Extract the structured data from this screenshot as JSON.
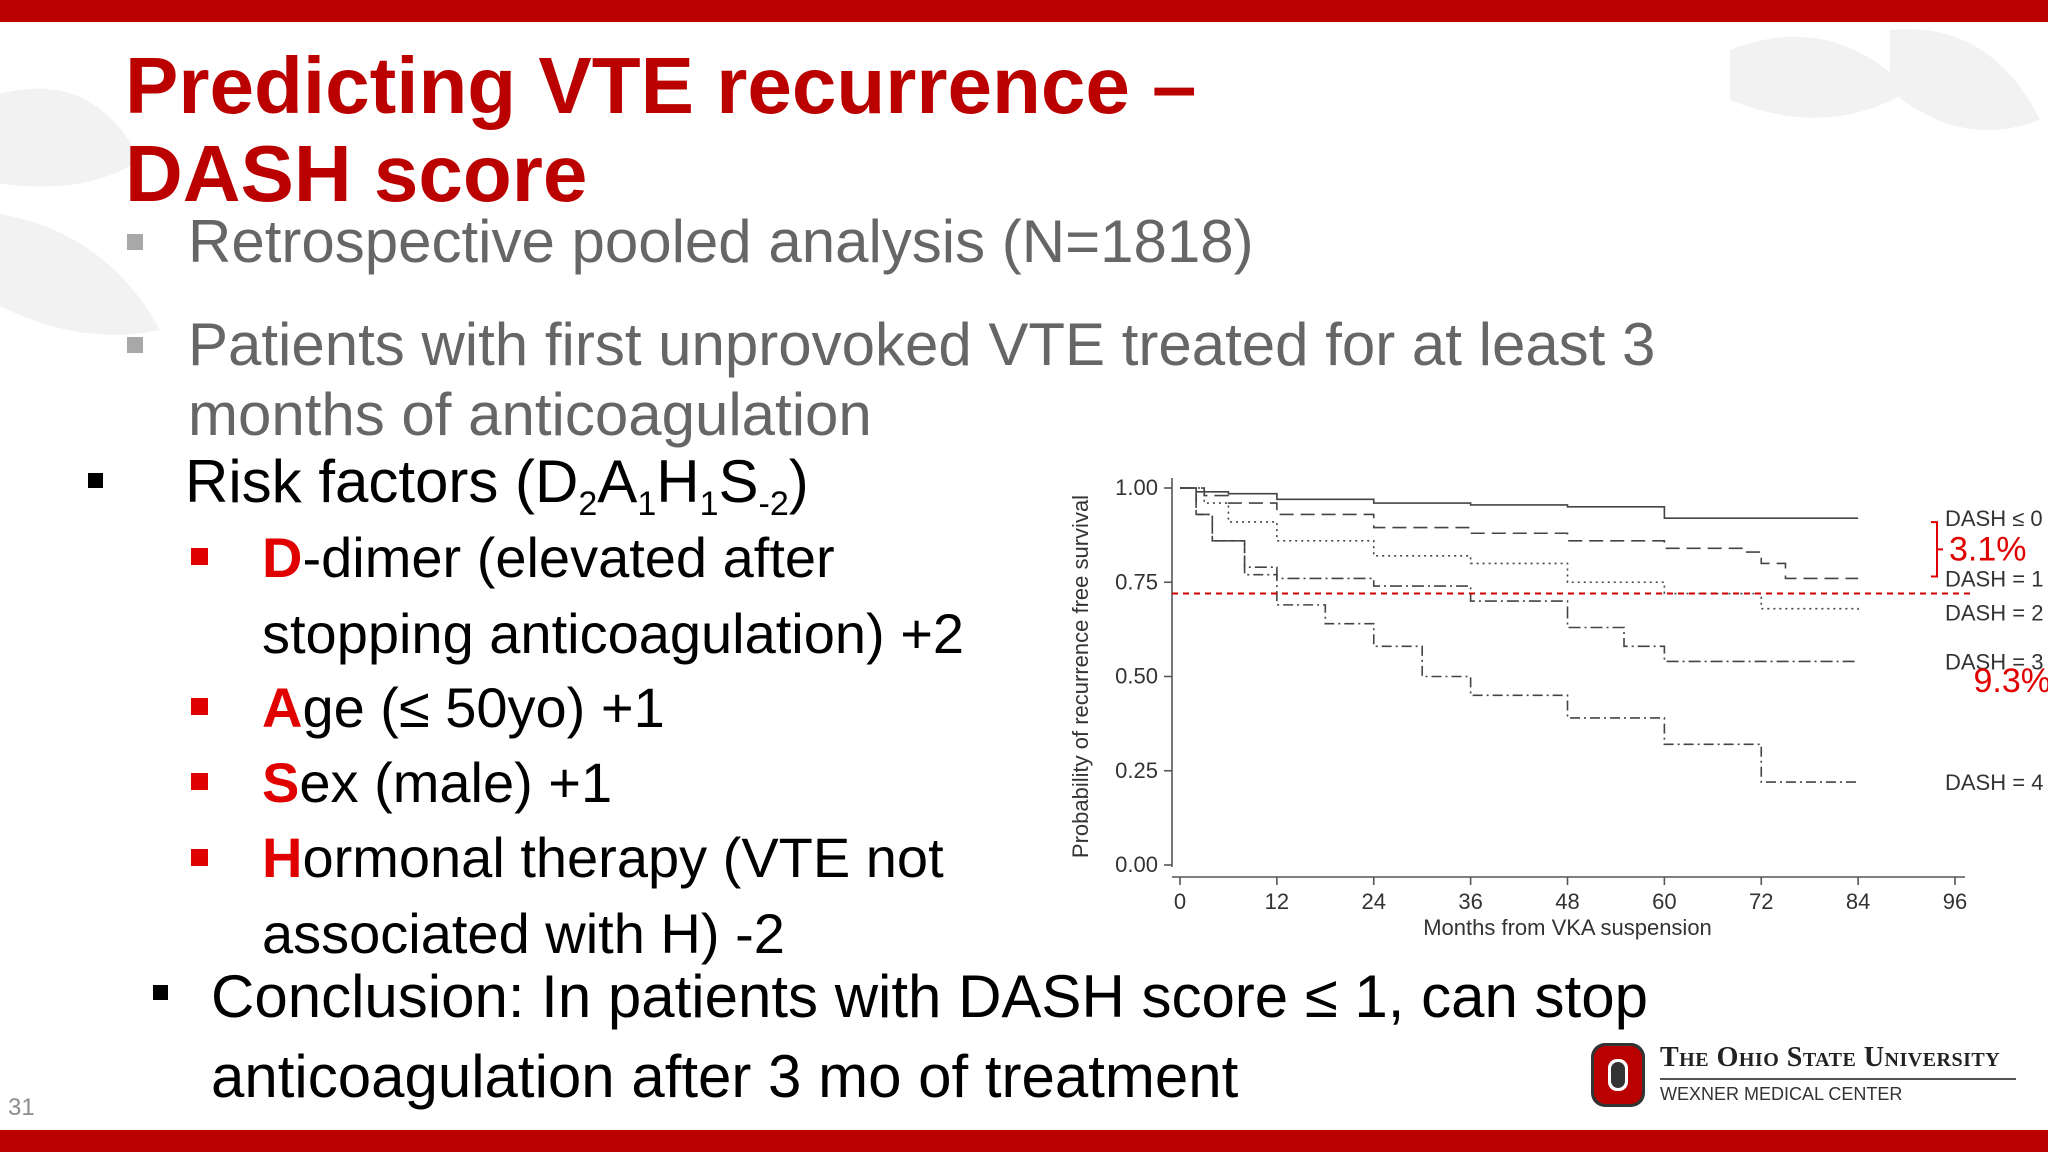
{
  "slide": {
    "title_line1": "Predicting VTE recurrence –",
    "title_line2": "DASH score",
    "bullet1": "Retrospective pooled analysis (N=1818)",
    "bullet2_line1": "Patients with first unprovoked VTE treated for at least 3",
    "bullet2_line2": "months of anticoagulation",
    "risk_prefix": "Risk factors (D",
    "risk_sub1": "2",
    "risk_a": "A",
    "risk_sub2": "1",
    "risk_h": "H",
    "risk_sub3": "1",
    "risk_s": "S",
    "risk_sub4": "-2",
    "risk_suffix": ")",
    "factors": [
      {
        "letter": "D",
        "rest_line1": "-dimer (elevated after",
        "rest_line2": "stopping anticoagulation) +2"
      },
      {
        "letter": "A",
        "rest_line1": "ge (≤ 50yo) +1"
      },
      {
        "letter": "S",
        "rest_line1": "ex (male) +1"
      },
      {
        "letter": "H",
        "rest_line1": "ormonal therapy (VTE not",
        "rest_line2": "associated with H) -2"
      }
    ],
    "conclusion_line1": "Conclusion: In patients with DASH score ≤ 1, can stop",
    "conclusion_line2": "anticoagulation after 3 mo of treatment",
    "slide_number": "31",
    "footer_org": "The Ohio State University",
    "footer_sub": "WEXNER MEDICAL CENTER",
    "colors": {
      "brand_red": "#bb0000",
      "bullet_red": "#e00000",
      "gray_text": "#666666"
    }
  },
  "chart_data": {
    "type": "line",
    "xlabel": "Months from VKA suspension",
    "ylabel": "Probability of recurrence free survival",
    "xlim": [
      0,
      96
    ],
    "ylim": [
      0,
      1
    ],
    "xticks": [
      "0",
      "12",
      "24",
      "36",
      "48",
      "60",
      "72",
      "84",
      "96"
    ],
    "yticks": [
      "0.00",
      "0.25",
      "0.50",
      "0.75",
      "1.00"
    ],
    "series": [
      {
        "name": "DASH ≤ 0",
        "dash": "",
        "x": [
          0,
          2,
          6,
          12,
          24,
          36,
          44,
          48,
          60,
          72,
          84
        ],
        "y": [
          1,
          0.99,
          0.985,
          0.97,
          0.96,
          0.955,
          0.955,
          0.95,
          0.92,
          0.92,
          0.92
        ]
      },
      {
        "name": "DASH = 1",
        "dash": "14,7",
        "x": [
          0,
          3,
          6,
          12,
          24,
          36,
          48,
          60,
          70,
          72,
          75,
          84
        ],
        "y": [
          1,
          0.98,
          0.96,
          0.93,
          0.895,
          0.88,
          0.86,
          0.84,
          0.83,
          0.8,
          0.76,
          0.76
        ]
      },
      {
        "name": "DASH = 2",
        "dash": "2,4",
        "x": [
          0,
          3,
          6,
          12,
          24,
          36,
          48,
          60,
          72,
          84
        ],
        "y": [
          1,
          0.96,
          0.91,
          0.86,
          0.82,
          0.8,
          0.75,
          0.72,
          0.68,
          0.67
        ]
      },
      {
        "name": "DASH = 3",
        "dash": "12,4,2,4",
        "x": [
          0,
          2,
          4,
          8,
          12,
          24,
          36,
          48,
          55,
          60,
          84
        ],
        "y": [
          1,
          0.93,
          0.86,
          0.79,
          0.76,
          0.74,
          0.7,
          0.63,
          0.58,
          0.54,
          0.54
        ]
      },
      {
        "name": "DASH = 4",
        "dash": "10,4,2,4",
        "x": [
          0,
          2,
          4,
          8,
          12,
          18,
          24,
          30,
          36,
          48,
          60,
          72,
          84
        ],
        "y": [
          1,
          0.93,
          0.86,
          0.77,
          0.69,
          0.64,
          0.58,
          0.5,
          0.45,
          0.39,
          0.32,
          0.22,
          0.22
        ]
      }
    ],
    "reference_line": {
      "y": 0.72,
      "color": "#cc0000"
    },
    "annotations": [
      {
        "text": "3.1%",
        "color": "#e00000"
      },
      {
        "text": "9.3%",
        "color": "#e00000"
      }
    ],
    "legend": "right"
  }
}
